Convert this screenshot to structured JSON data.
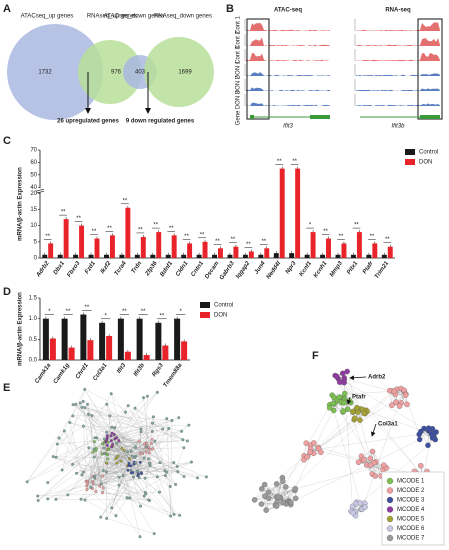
{
  "panels": [
    "A",
    "B",
    "C",
    "D",
    "E",
    "F"
  ],
  "venn": [
    {
      "left": "ATACseq_up genes",
      "right": "RNAseq_up genes",
      "left_count": 1732,
      "right_count": 976,
      "result": "26 upregulated genes"
    },
    {
      "left": "ATACseq_down genes",
      "right": "RNAseq_down genes",
      "left_count": 403,
      "right_count": 1699,
      "result": "9 down regulated genes"
    }
  ],
  "tracks": {
    "titles": [
      "ATAC-seq",
      "RNA-seq"
    ],
    "rows": [
      "Cont 1",
      "Cont 2",
      "Cont 3",
      "DON 1",
      "DON 2",
      "DON 3"
    ],
    "gene_row": "Gene",
    "genes": [
      "Ifit3",
      "Ifit3b"
    ]
  },
  "chart_data": [
    {
      "type": "bar",
      "ylabel": "mRNA/β-actin Expression",
      "categories": [
        "Adrb2",
        "Dbx1",
        "Fbxo3",
        "Fzd1",
        "Ikzf2",
        "Tcra4",
        "Trdn",
        "Zfp36",
        "Bdnf1",
        "Cldn1",
        "Cntn1",
        "Dscam",
        "Gabrb3",
        "Iqgap2",
        "Jun4",
        "Nedd4l",
        "Npr3",
        "Kcnf1",
        "Kcnh1",
        "Mmp3",
        "Pitx1",
        "Ptafr",
        "Trim21"
      ],
      "series": [
        {
          "name": "Control",
          "color": "#1a1a1a",
          "values": [
            1,
            1,
            1,
            1,
            1,
            1,
            1,
            1,
            1,
            1,
            1,
            1,
            1,
            1,
            1,
            1.5,
            1.5,
            1,
            1,
            1,
            1,
            1,
            1
          ]
        },
        {
          "name": "DON",
          "color": "#e8232a",
          "values": [
            4.5,
            12,
            10,
            6,
            7,
            15.5,
            6.5,
            8,
            7,
            4.5,
            5,
            3,
            3.5,
            2,
            3,
            55,
            55,
            8,
            6,
            4.5,
            8,
            4.5,
            3.5
          ]
        }
      ],
      "significance": [
        "**",
        "**",
        "**",
        "**",
        "**",
        "**",
        "**",
        "**",
        "**",
        "**",
        "**",
        "**",
        "**",
        "**",
        "**",
        "**",
        "**",
        "*",
        "**",
        "**",
        "**",
        "**",
        "**"
      ],
      "ylim": [
        0,
        70
      ],
      "yticks": [
        0,
        5,
        10,
        15,
        20,
        40,
        50,
        60,
        70
      ],
      "ybreak": [
        20,
        40
      ],
      "legend": "upper right"
    },
    {
      "type": "bar",
      "ylabel": "mRNA/β-actin Expression",
      "categories": [
        "Camk1a",
        "Camk1g",
        "Chrd1",
        "Col3a1",
        "Ifit3",
        "Ifit3b",
        "Rgs3",
        "Tmem88a"
      ],
      "series": [
        {
          "name": "Control",
          "color": "#1a1a1a",
          "values": [
            1.0,
            1.0,
            1.1,
            0.9,
            1.0,
            1.0,
            0.9,
            1.0
          ]
        },
        {
          "name": "DON",
          "color": "#e8232a",
          "values": [
            0.52,
            0.3,
            0.48,
            0.58,
            0.2,
            0.12,
            0.35,
            0.45
          ]
        }
      ],
      "significance": [
        "*",
        "**",
        "**",
        "*",
        "**",
        "**",
        "**",
        "*"
      ],
      "ylim": [
        0,
        1.5
      ],
      "yticks": [
        {
          "value": 0,
          "label": "0.0"
        },
        0.5,
        {
          "value": 1,
          "label": "1.0"
        },
        1.5
      ],
      "legend": "right"
    }
  ],
  "network_f": {
    "labels": [
      "Adrb2",
      "Ptafr",
      "Col3a1"
    ],
    "legend": [
      {
        "name": "MCODE 1",
        "color": "#7cc150"
      },
      {
        "name": "MCODE 2",
        "color": "#f0a0a0"
      },
      {
        "name": "MCODE 3",
        "color": "#3d4f9f"
      },
      {
        "name": "MCODE 4",
        "color": "#8e3a9e"
      },
      {
        "name": "MCODE 5",
        "color": "#a6a232"
      },
      {
        "name": "MCODE 6",
        "color": "#c9c9e6"
      },
      {
        "name": "MCODE 7",
        "color": "#9a9a9a"
      }
    ]
  }
}
